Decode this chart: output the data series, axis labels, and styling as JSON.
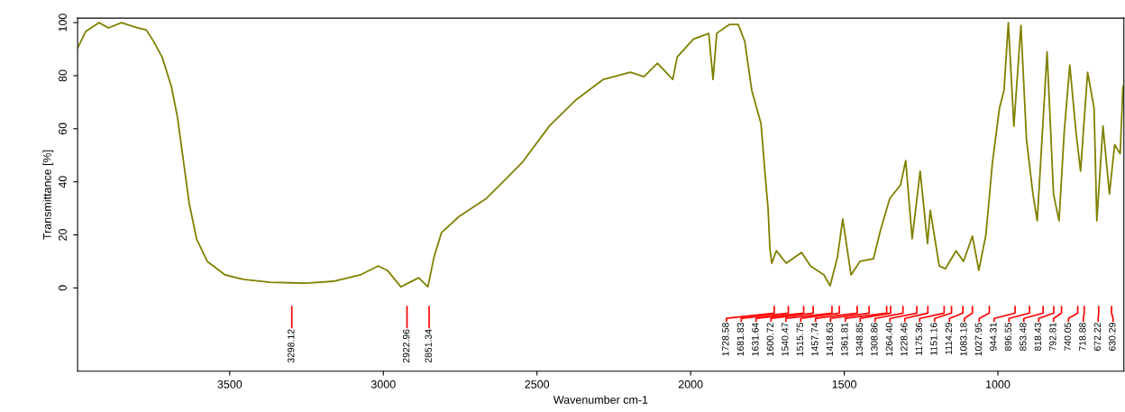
{
  "chart_data": {
    "type": "line",
    "xlabel": "Wavenumber cm-1",
    "ylabel": "Transmittance [%]",
    "x": [
      3995,
      3969,
      3925,
      3895,
      3852,
      3808,
      3772,
      3749,
      3720,
      3690,
      3670,
      3652,
      3632,
      3608,
      3573,
      3515,
      3456,
      3368,
      3298,
      3251,
      3163,
      3075,
      3017,
      2987,
      2943,
      2923,
      2885,
      2855,
      2835,
      2811,
      2753,
      2665,
      2606,
      2548,
      2460,
      2372,
      2284,
      2196,
      2152,
      2108,
      2058,
      2044,
      1991,
      1941,
      1927,
      1915,
      1874,
      1845,
      1824,
      1801,
      1771,
      1757,
      1748,
      1742,
      1736,
      1721,
      1689,
      1639,
      1610,
      1601,
      1566,
      1546,
      1522,
      1505,
      1478,
      1458,
      1449,
      1419,
      1405,
      1382,
      1362,
      1352,
      1317,
      1300,
      1279,
      1264,
      1253,
      1229,
      1220,
      1191,
      1171,
      1151,
      1136,
      1112,
      1083,
      1062,
      1039,
      1028,
      1018,
      995,
      980,
      966,
      948,
      925,
      907,
      897,
      886,
      872,
      848,
      840,
      819,
      801,
      784,
      766,
      746,
      731,
      719,
      708,
      687,
      678,
      658,
      637,
      620,
      602,
      593
    ],
    "series": [
      {
        "color": "#808000",
        "values": [
          90.4,
          96.6,
          100,
          98,
          100,
          98.3,
          97.3,
          93.2,
          87,
          76,
          64.3,
          49,
          32,
          18.5,
          10,
          4.9,
          3.2,
          2.1,
          1.9,
          1.8,
          2.5,
          4.9,
          8.3,
          6.6,
          0.4,
          1.6,
          3.8,
          0.4,
          11.7,
          20.8,
          27,
          33.7,
          40.5,
          47.3,
          61,
          71,
          78.6,
          81.3,
          79.6,
          84.7,
          78.6,
          87,
          93.8,
          95.9,
          78.6,
          96,
          99.3,
          99.3,
          93,
          74.5,
          62,
          42,
          30,
          15,
          9.3,
          14,
          9.3,
          13.4,
          8.3,
          7.6,
          4.9,
          0.8,
          11.7,
          26,
          4.9,
          8.4,
          10,
          10.7,
          11,
          21.8,
          29.7,
          33.7,
          38.8,
          48,
          18.5,
          33.2,
          44,
          16.7,
          29.3,
          8.3,
          7.2,
          11.1,
          14,
          10,
          19.5,
          6.6,
          20,
          34.1,
          47,
          67.7,
          74.5,
          100,
          61,
          99,
          56,
          46.2,
          35.4,
          25.3,
          72.8,
          89,
          35.4,
          25.3,
          59,
          84,
          59,
          44,
          63.5,
          81.3,
          67.7,
          25.3,
          61,
          35.4,
          54,
          50.6,
          76
        ]
      }
    ],
    "xlim": [
      3995,
      590
    ],
    "ylim": [
      -31.4,
      101.7
    ],
    "xticks": [
      3500,
      3000,
      2500,
      2000,
      1500,
      1000
    ],
    "yticks": [
      0,
      20,
      40,
      60,
      80,
      100
    ],
    "grid": false,
    "annotations": [
      {
        "text": "3298.12",
        "x": 3298
      },
      {
        "text": "2922.96",
        "x": 2923
      },
      {
        "text": "2851.34",
        "x": 2851
      },
      {
        "text": "1728.58",
        "x": 1728
      },
      {
        "text": "1681.83",
        "x": 1682
      },
      {
        "text": "1631.64",
        "x": 1632
      },
      {
        "text": "1600.72",
        "x": 1601
      },
      {
        "text": "1540.47",
        "x": 1540
      },
      {
        "text": "1515.75",
        "x": 1516
      },
      {
        "text": "1457.74",
        "x": 1458
      },
      {
        "text": "1418.63",
        "x": 1419
      },
      {
        "text": "1361.81",
        "x": 1362
      },
      {
        "text": "1348.85",
        "x": 1349
      },
      {
        "text": "1308.86",
        "x": 1309
      },
      {
        "text": "1264.40",
        "x": 1264
      },
      {
        "text": "1228.46",
        "x": 1228
      },
      {
        "text": "1175.36",
        "x": 1175
      },
      {
        "text": "1151.16",
        "x": 1151
      },
      {
        "text": "1114.29",
        "x": 1114
      },
      {
        "text": "1083.18",
        "x": 1083
      },
      {
        "text": "1027.95",
        "x": 1028
      },
      {
        "text": "944.31",
        "x": 944
      },
      {
        "text": "896.55",
        "x": 897
      },
      {
        "text": "853.48",
        "x": 853
      },
      {
        "text": "818.43",
        "x": 818
      },
      {
        "text": "792.81",
        "x": 793
      },
      {
        "text": "740.05",
        "x": 740
      },
      {
        "text": "718.88",
        "x": 719
      },
      {
        "text": "672.22",
        "x": 672
      },
      {
        "text": "630.29",
        "x": 630
      }
    ]
  }
}
